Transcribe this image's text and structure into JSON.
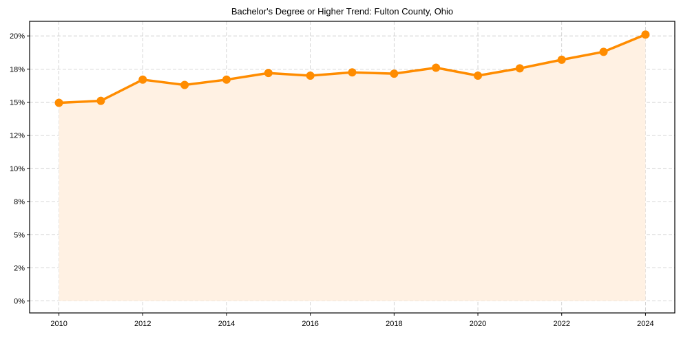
{
  "chart_data": {
    "type": "line",
    "title": "Bachelor's Degree or Higher Trend: Fulton County, Ohio",
    "xlabel": "",
    "ylabel": "",
    "x": [
      2010,
      2011,
      2012,
      2013,
      2014,
      2015,
      2016,
      2017,
      2018,
      2019,
      2020,
      2021,
      2022,
      2023,
      2024
    ],
    "series": [
      {
        "name": "Bachelor's Degree or Higher",
        "values": [
          14.95,
          15.1,
          16.7,
          16.3,
          16.7,
          17.2,
          17.0,
          17.25,
          17.15,
          17.6,
          17.0,
          17.55,
          18.2,
          18.8,
          20.1
        ],
        "color": "#FF8C00",
        "fill": "#FFF1E3"
      }
    ],
    "xticks": [
      2010,
      2012,
      2014,
      2016,
      2018,
      2020,
      2022,
      2024
    ],
    "xtick_labels": [
      "2010",
      "2012",
      "2014",
      "2016",
      "2018",
      "2020",
      "2022",
      "2024"
    ],
    "yticks": [
      0,
      2.5,
      5,
      7.5,
      10,
      12.5,
      15,
      17.5,
      20
    ],
    "ytick_labels": [
      "0%",
      "2%",
      "5%",
      "8%",
      "10%",
      "12%",
      "15%",
      "18%",
      "20%"
    ],
    "xlim": [
      2009.3,
      2024.7
    ],
    "ylim": [
      -0.9,
      21.1
    ],
    "grid": true,
    "legend": null
  }
}
